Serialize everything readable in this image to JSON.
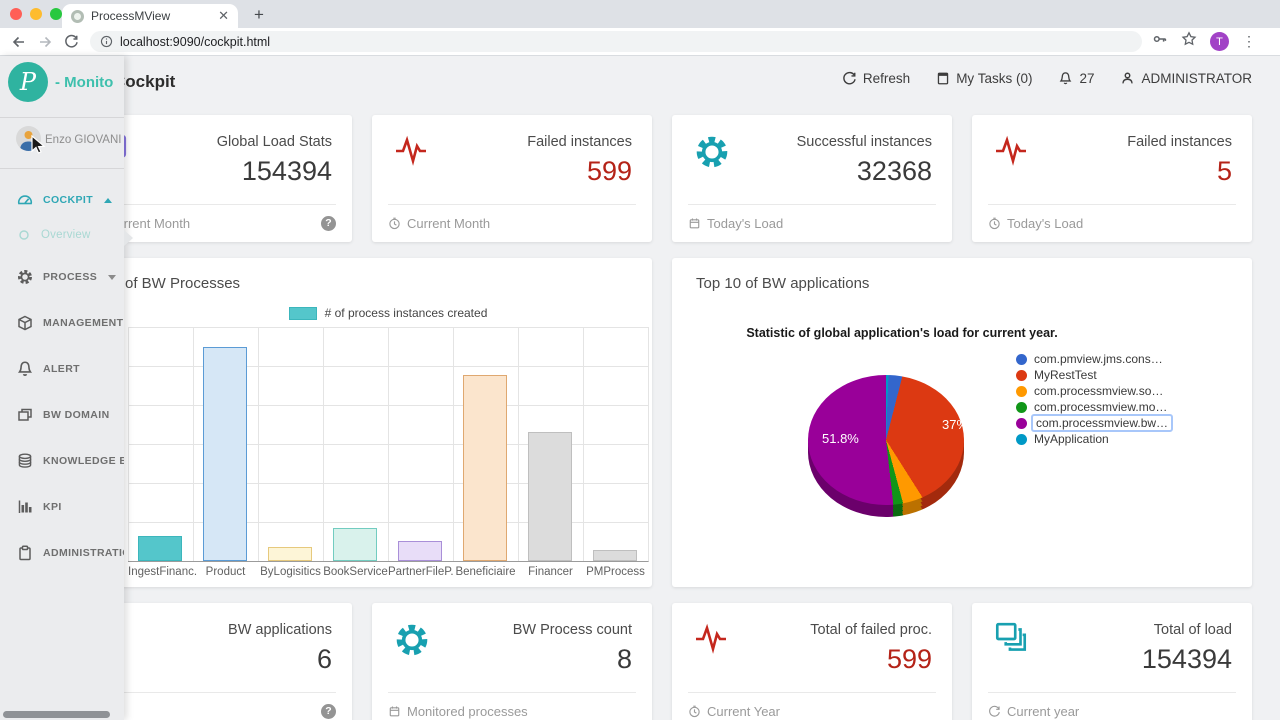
{
  "browser": {
    "tab_title": "ProcessMView",
    "url": "localhost:9090/cockpit.html",
    "avatar_letter": "T"
  },
  "header": {
    "title": "Cockpit",
    "refresh_label": "Refresh",
    "my_tasks_label": "My Tasks (0)",
    "notification_count": "27",
    "user_label": "ADMINISTRATOR"
  },
  "sidebar": {
    "brand": "- Monito",
    "user_name": "Enzo GIOVANI HI",
    "items": [
      {
        "label": "COCKPIT",
        "icon": "gauge-icon",
        "state": "expanded-active"
      },
      {
        "label": "Overview",
        "icon": "circle-icon",
        "state": "submenu-active"
      },
      {
        "label": "PROCESS",
        "icon": "gear-icon",
        "state": "collapsed"
      },
      {
        "label": "MANAGEMENT",
        "icon": "cube-icon"
      },
      {
        "label": "ALERT",
        "icon": "bell-icon"
      },
      {
        "label": "BW DOMAIN",
        "icon": "windows-icon"
      },
      {
        "label": "KNOWLEDGE BASE",
        "icon": "database-icon"
      },
      {
        "label": "KPI",
        "icon": "bar-chart-icon"
      },
      {
        "label": "ADMINISTRATION",
        "icon": "clipboard-icon"
      }
    ]
  },
  "cards_top": [
    {
      "title": "Global Load Stats",
      "value": "154394",
      "footer": "Current Month",
      "value_color": "dark",
      "has_help": true
    },
    {
      "title": "Failed instances",
      "value": "599",
      "footer": "Current Month",
      "value_color": "red",
      "footer_icon": "clock-icon"
    },
    {
      "title": "Successful instances",
      "value": "32368",
      "footer": "Today's Load",
      "value_color": "dark",
      "footer_icon": "calendar-icon"
    },
    {
      "title": "Failed instances",
      "value": "5",
      "footer": "Today's Load",
      "value_color": "red",
      "footer_icon": "clock-icon"
    }
  ],
  "cards_bottom": [
    {
      "title": "BW applications",
      "value": "6",
      "footer": "",
      "value_color": "dark",
      "has_help": true
    },
    {
      "title": "BW Process count",
      "value": "8",
      "footer": "Monitored processes",
      "value_color": "dark",
      "footer_icon": "calendar-icon"
    },
    {
      "title": "Total of failed proc.",
      "value": "599",
      "footer": "Current Year",
      "value_color": "red",
      "footer_icon": "clock-icon"
    },
    {
      "title": "Total of load",
      "value": "154394",
      "footer": "Current year",
      "value_color": "dark",
      "footer_icon": "refresh-icon"
    }
  ],
  "colors": {
    "brand_teal": "#2fb3a0",
    "icon_teal": "#18a0b0",
    "icon_purple": "#8673dd",
    "status_red": "#b42318"
  },
  "chart_data": [
    {
      "type": "bar",
      "title": "of BW Processes",
      "legend": "# of process instances created",
      "legend_swatch_color": "#54c6cb",
      "categories": [
        "IngestFinanc.",
        "Product",
        "ByLogisitics",
        "BookService",
        "PartnerFileP.",
        "Beneficiaire",
        "Financer",
        "PMProcess"
      ],
      "values_pct_of_max": [
        11.7,
        100,
        6.5,
        15.4,
        9.3,
        86.9,
        60.3,
        5.1
      ],
      "bar_fills": [
        "#54c6cb",
        "#d6e7f6",
        "#fdf5d7",
        "#d9f2ec",
        "#e8ddf8",
        "#fbe5cd",
        "#dcdcdc",
        "#dcdcdc"
      ],
      "bar_strokes": [
        "#3cb6bc",
        "#5b9bd5",
        "#e6c97d",
        "#72ccc0",
        "#a98fd8",
        "#dfa870",
        "#bfbfbf",
        "#bfbfbf"
      ],
      "y_axis_labels_visible": false,
      "grid": true,
      "legend_position": "top"
    },
    {
      "type": "pie",
      "card_title": "Top 10 of BW applications",
      "title": "Statistic of global application's load for current year.",
      "is_3d": true,
      "legend_position": "right",
      "slices": [
        {
          "label": "com.pmview.jms.cons…",
          "color": "#3366cc",
          "color_dark": "#24479a",
          "pct": 3.4
        },
        {
          "label": "MyRestTest",
          "color": "#dc3912",
          "color_dark": "#a32a0d",
          "pct": 37
        },
        {
          "label": "com.processmview.so…",
          "color": "#ff9900",
          "color_dark": "#bb7100",
          "pct": 4.8
        },
        {
          "label": "com.processmview.mo…",
          "color": "#109618",
          "color_dark": "#0b6b11",
          "pct": 2.4
        },
        {
          "label": "com.processmview.bw…",
          "color": "#990099",
          "color_dark": "#6b006b",
          "pct": 51.8,
          "highlighted": true
        },
        {
          "label": "MyApplication",
          "color": "#0099c6",
          "color_dark": "#00708f",
          "pct": 0.6
        }
      ],
      "labels": [
        {
          "text": "37%"
        },
        {
          "text": "51.8%"
        }
      ]
    }
  ]
}
